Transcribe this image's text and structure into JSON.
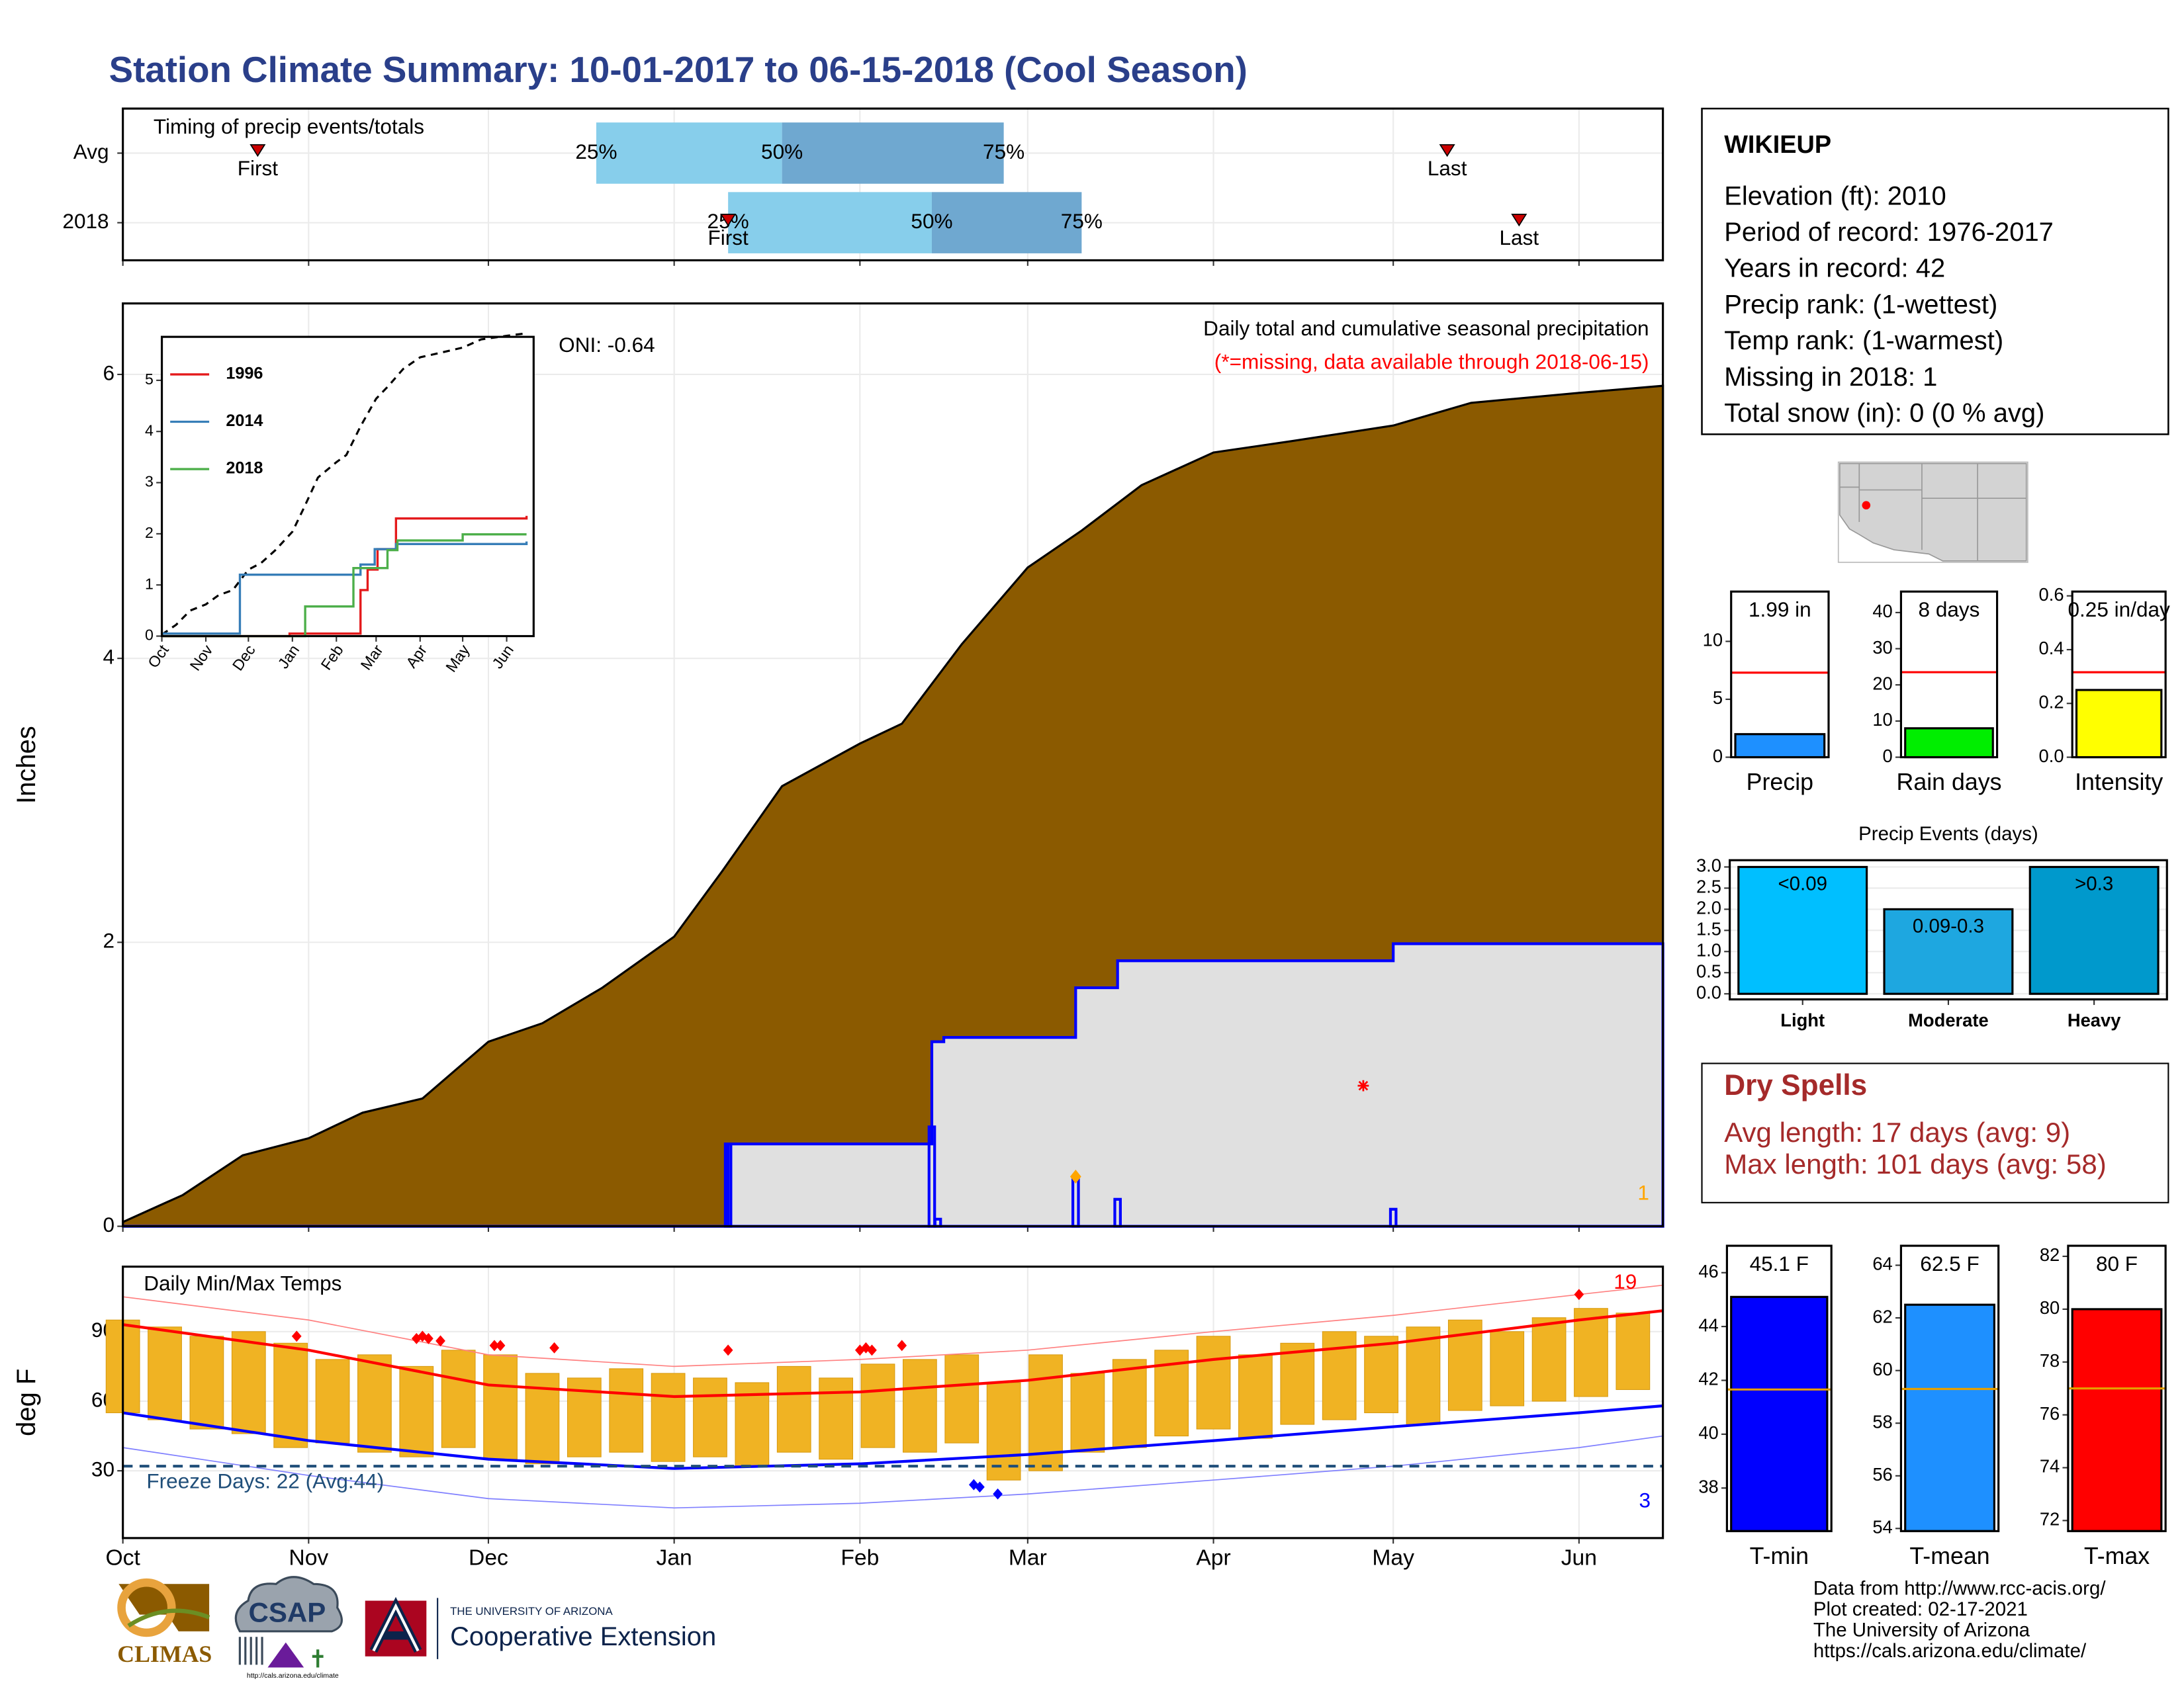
{
  "title": "Station Climate Summary: 10-01-2017 to 06-15-2018 (Cool Season)",
  "station": {
    "name": "WIKIEUP",
    "lines": [
      "Elevation (ft): 2010",
      "Period of record: 1976-2017",
      "Years in record: 42",
      "Precip rank:  (1-wettest)",
      "Temp rank:  (1-warmest)",
      "Missing in 2018: 1",
      "Total snow (in): 0 (0 % avg)"
    ]
  },
  "dry_spells": {
    "title": "Dry Spells",
    "lines": [
      "Avg length: 17 days (avg: 9)",
      "Max length: 101 days (avg: 58)"
    ]
  },
  "footer": [
    "Data from http://www.rcc-acis.org/",
    "Plot created: 02-17-2021",
    "The University of Arizona",
    "https://cals.arizona.edu/climate/"
  ],
  "logos": {
    "climas": "CLIMAS",
    "csap": "CSAP",
    "csap_url": "http://cals.arizona.edu/climate",
    "university": "THE UNIVERSITY OF ARIZONA",
    "extension": "Cooperative Extension"
  },
  "chart_data": [
    {
      "type": "timing",
      "title": "Timing of precip events/totals",
      "categories": [
        "Avg",
        "2018"
      ],
      "quartiles": [
        [
          79,
          110,
          147
        ],
        [
          101,
          135,
          160
        ]
      ],
      "quartile_labels": [
        "25%",
        "50%",
        "75%"
      ],
      "first": [
        22.5,
        101
      ],
      "last": [
        221,
        233
      ],
      "first_label": "First",
      "last_label": "Last",
      "colors": [
        "#87ceeb",
        "#6fa8d0"
      ],
      "marker_color": "#cc0000",
      "xlim": [
        0,
        257
      ],
      "xticks": [
        0,
        31,
        61,
        92,
        123,
        151,
        182,
        212,
        243
      ],
      "grid": true
    },
    {
      "type": "cumulative",
      "title": "Daily total and cumulative seasonal precipitation",
      "subtitle": "(*=missing, data available through 2018-06-15)",
      "annotation": "ONI: -0.64",
      "missing_count": 1,
      "y_label": "Inches",
      "xlim": [
        0,
        257
      ],
      "xticks": [
        0,
        31,
        61,
        92,
        123,
        151,
        182,
        212,
        243
      ],
      "ylim": [
        0,
        6.5
      ],
      "yticks": [
        0,
        2,
        4,
        6
      ],
      "grid": true,
      "average": {
        "color": "#8b5a00",
        "x": [
          0,
          10,
          20,
          31,
          40,
          50,
          61,
          70,
          80,
          92,
          100,
          110,
          123,
          130,
          140,
          151,
          160,
          170,
          182,
          195,
          212,
          225,
          243,
          257
        ],
        "values": [
          0.03,
          0.22,
          0.5,
          0.62,
          0.8,
          0.9,
          1.3,
          1.43,
          1.68,
          2.04,
          2.5,
          3.1,
          3.4,
          3.54,
          4.1,
          4.64,
          4.9,
          5.22,
          5.45,
          5.53,
          5.64,
          5.8,
          5.87,
          5.92
        ]
      },
      "cumulative_2018": {
        "color": "#0000ff",
        "fill": "#e0e0e0",
        "x": [
          0,
          101,
          135,
          137,
          159,
          166,
          212,
          257
        ],
        "values": [
          0,
          0.58,
          1.3,
          1.33,
          1.68,
          1.87,
          1.99,
          1.99
        ]
      },
      "daily_2018": {
        "color": "#0000ff",
        "x": [
          101,
          135,
          136,
          159,
          166,
          212
        ],
        "values": [
          0.58,
          0.7,
          0.05,
          0.35,
          0.19,
          0.12
        ]
      },
      "max_marker_color": "#ffa500",
      "missing_points": {
        "color": "#ff0000",
        "x": [
          207
        ],
        "values": [
          0.99
        ]
      }
    },
    {
      "type": "line",
      "xlim": [
        0,
        262
      ],
      "xticks": [
        {
          "value": 0,
          "label": "Oct"
        },
        {
          "value": 31,
          "label": "Nov"
        },
        {
          "value": 61,
          "label": "Dec"
        },
        {
          "value": 92,
          "label": "Jan"
        },
        {
          "value": 123,
          "label": "Feb"
        },
        {
          "value": 151,
          "label": "Mar"
        },
        {
          "value": 182,
          "label": "Apr"
        },
        {
          "value": 212,
          "label": "May"
        },
        {
          "value": 243,
          "label": "Jun"
        }
      ],
      "ylim": [
        0,
        5.85
      ],
      "yticks": [
        0,
        1,
        2,
        3,
        4,
        5
      ],
      "series": [
        {
          "name": "1996",
          "color": "#e41a1c",
          "x": [
            0,
            90,
            140,
            145,
            152,
            165,
            257
          ],
          "values": [
            0,
            0.05,
            0.9,
            1.3,
            1.7,
            2.3,
            2.35
          ]
        },
        {
          "name": "2014",
          "color": "#377eb8",
          "x": [
            0,
            55,
            140,
            150,
            165,
            257
          ],
          "values": [
            0.05,
            1.2,
            1.4,
            1.7,
            1.8,
            1.85
          ]
        },
        {
          "name": "2018",
          "color": "#4daf4a",
          "x": [
            0,
            101,
            135,
            159,
            166,
            212,
            257
          ],
          "values": [
            0,
            0.58,
            1.33,
            1.68,
            1.87,
            1.99,
            1.99
          ]
        }
      ],
      "average": {
        "color": "#000000",
        "x": [
          0,
          10,
          20,
          31,
          40,
          50,
          61,
          70,
          80,
          92,
          100,
          110,
          123,
          130,
          140,
          151,
          160,
          170,
          182,
          195,
          212,
          225,
          243,
          257
        ],
        "values": [
          0.03,
          0.22,
          0.5,
          0.62,
          0.8,
          0.9,
          1.3,
          1.43,
          1.68,
          2.04,
          2.5,
          3.1,
          3.4,
          3.54,
          4.1,
          4.64,
          4.9,
          5.22,
          5.45,
          5.53,
          5.64,
          5.8,
          5.87,
          5.92
        ]
      }
    },
    {
      "type": "temps",
      "title": "Daily Min/Max Temps",
      "y_label": "deg F",
      "xlim": [
        0,
        257
      ],
      "xticks": [
        {
          "value": 0,
          "label": "Oct"
        },
        {
          "value": 31,
          "label": "Nov"
        },
        {
          "value": 61,
          "label": "Dec"
        },
        {
          "value": 92,
          "label": "Jan"
        },
        {
          "value": 123,
          "label": "Feb"
        },
        {
          "value": 151,
          "label": "Mar"
        },
        {
          "value": 182,
          "label": "Apr"
        },
        {
          "value": 212,
          "label": "May"
        },
        {
          "value": 243,
          "label": "Jun"
        }
      ],
      "ylim": [
        1,
        118
      ],
      "yticks": [
        30,
        60,
        90
      ],
      "grid": true,
      "daily": {
        "color": "#f0b323",
        "x": [
          0,
          7,
          14,
          21,
          28,
          35,
          42,
          49,
          56,
          63,
          70,
          77,
          84,
          91,
          98,
          105,
          112,
          119,
          126,
          133,
          140,
          147,
          154,
          161,
          168,
          175,
          182,
          189,
          196,
          203,
          210,
          217,
          224,
          231,
          238,
          245,
          252
        ],
        "max": [
          95,
          92,
          88,
          90,
          85,
          78,
          80,
          75,
          82,
          80,
          72,
          70,
          74,
          72,
          70,
          68,
          75,
          70,
          76,
          78,
          80,
          68,
          80,
          72,
          78,
          82,
          88,
          80,
          85,
          90,
          88,
          92,
          95,
          90,
          96,
          100,
          98
        ],
        "min": [
          55,
          52,
          48,
          46,
          40,
          42,
          38,
          36,
          40,
          35,
          33,
          36,
          38,
          34,
          36,
          32,
          38,
          35,
          40,
          38,
          42,
          26,
          30,
          38,
          40,
          45,
          48,
          44,
          50,
          52,
          55,
          50,
          56,
          58,
          60,
          62,
          65
        ]
      },
      "avg_max": {
        "color": "#ff0000",
        "x": [
          0,
          31,
          61,
          92,
          123,
          151,
          182,
          212,
          243,
          257
        ],
        "values": [
          93,
          82,
          67,
          62,
          64,
          69,
          78,
          85,
          95,
          99
        ]
      },
      "avg_min": {
        "color": "#0000ff",
        "x": [
          0,
          31,
          61,
          92,
          123,
          151,
          182,
          212,
          243,
          257
        ],
        "values": [
          55,
          43,
          35,
          31,
          33,
          37,
          43,
          49,
          55,
          58
        ]
      },
      "record_max": {
        "color": "#ff8080",
        "x": [
          0,
          31,
          61,
          92,
          123,
          151,
          182,
          212,
          243,
          257
        ],
        "values": [
          105,
          95,
          80,
          75,
          78,
          82,
          90,
          97,
          106,
          110
        ]
      },
      "record_min": {
        "color": "#8080ff",
        "x": [
          0,
          31,
          61,
          92,
          123,
          151,
          182,
          212,
          243,
          257
        ],
        "values": [
          40,
          28,
          18,
          14,
          16,
          20,
          26,
          32,
          40,
          45
        ]
      },
      "record_highs": {
        "color": "#ff0000",
        "x": [
          29,
          49,
          50,
          51,
          53,
          62,
          63,
          72,
          101,
          123,
          124,
          125,
          130,
          243
        ],
        "values": [
          88,
          87,
          88,
          87,
          86,
          84,
          84,
          83,
          82,
          82,
          83,
          82,
          84,
          106
        ]
      },
      "record_lows": {
        "color": "#0000ff",
        "x": [
          142,
          143,
          146
        ],
        "values": [
          24,
          23,
          20
        ]
      },
      "freeze_line": 32,
      "freeze_color": "#1f4e79",
      "freeze_label": "Freeze Days: 22 (Avg:44)",
      "above_count": 19,
      "below_count": 3
    },
    {
      "type": "single_bar",
      "x_label": "Precip",
      "values": [
        1.99
      ],
      "value_labels": [
        "1.99 in"
      ],
      "color": "#1e90ff",
      "avg": 7.3,
      "avg_color": "#ff0000",
      "ylim": [
        0,
        14.3
      ],
      "yticks": [
        0,
        5,
        10
      ]
    },
    {
      "type": "single_bar",
      "x_label": "Rain days",
      "values": [
        8
      ],
      "value_labels": [
        "8 days"
      ],
      "color": "#00ee00",
      "avg": 23.5,
      "avg_color": "#ff0000",
      "ylim": [
        0,
        45.8
      ],
      "yticks": [
        0,
        10,
        20,
        30,
        40
      ]
    },
    {
      "type": "single_bar",
      "x_label": "Intensity",
      "values": [
        0.25
      ],
      "value_labels": [
        "0.25 in/day"
      ],
      "color": "#ffff00",
      "avg": 0.316,
      "avg_color": "#ff0000",
      "ylim": [
        0,
        0.616
      ],
      "yticks": [
        {
          "value": 0,
          "label": "0.0"
        },
        0.2,
        0.4,
        0.6
      ]
    },
    {
      "type": "bar",
      "title": "Precip Events (days)",
      "categories": [
        "Light",
        "Moderate",
        "Heavy"
      ],
      "descriptors": [
        "<0.09",
        "0.09-0.3",
        ">0.3"
      ],
      "values": [
        3,
        2,
        3
      ],
      "colors": [
        "#00bfff",
        "#1ea7e0",
        "#0099cc"
      ],
      "ylim": [
        0,
        3.16
      ],
      "yticks": [
        {
          "value": 0,
          "label": "0.0"
        },
        0.5,
        {
          "value": 1,
          "label": "1.0"
        },
        1.5,
        {
          "value": 2,
          "label": "2.0"
        },
        2.5,
        {
          "value": 3,
          "label": "3.0"
        }
      ],
      "grid": true
    },
    {
      "type": "single_bar",
      "x_label": "T-min",
      "values": [
        45.1
      ],
      "value_labels": [
        "45.1 F"
      ],
      "color": "#0000ff",
      "avg": 41.66,
      "avg_color": "#e69f00",
      "ylim": [
        36.4,
        47.0
      ],
      "yticks": [
        38,
        40,
        42,
        44,
        46
      ]
    },
    {
      "type": "single_bar",
      "x_label": "T-mean",
      "values": [
        62.5
      ],
      "value_labels": [
        "62.5 F"
      ],
      "color": "#1e90ff",
      "avg": 59.3,
      "avg_color": "#e69f00",
      "ylim": [
        53.9,
        64.74
      ],
      "yticks": [
        54,
        56,
        58,
        60,
        62,
        64
      ]
    },
    {
      "type": "single_bar",
      "x_label": "T-max",
      "values": [
        80
      ],
      "value_labels": [
        "80 F"
      ],
      "color": "#ff0000",
      "avg": 77.0,
      "avg_color": "#e69f00",
      "ylim": [
        71.6,
        82.4
      ],
      "yticks": [
        72,
        74,
        76,
        78,
        80,
        82
      ]
    }
  ]
}
